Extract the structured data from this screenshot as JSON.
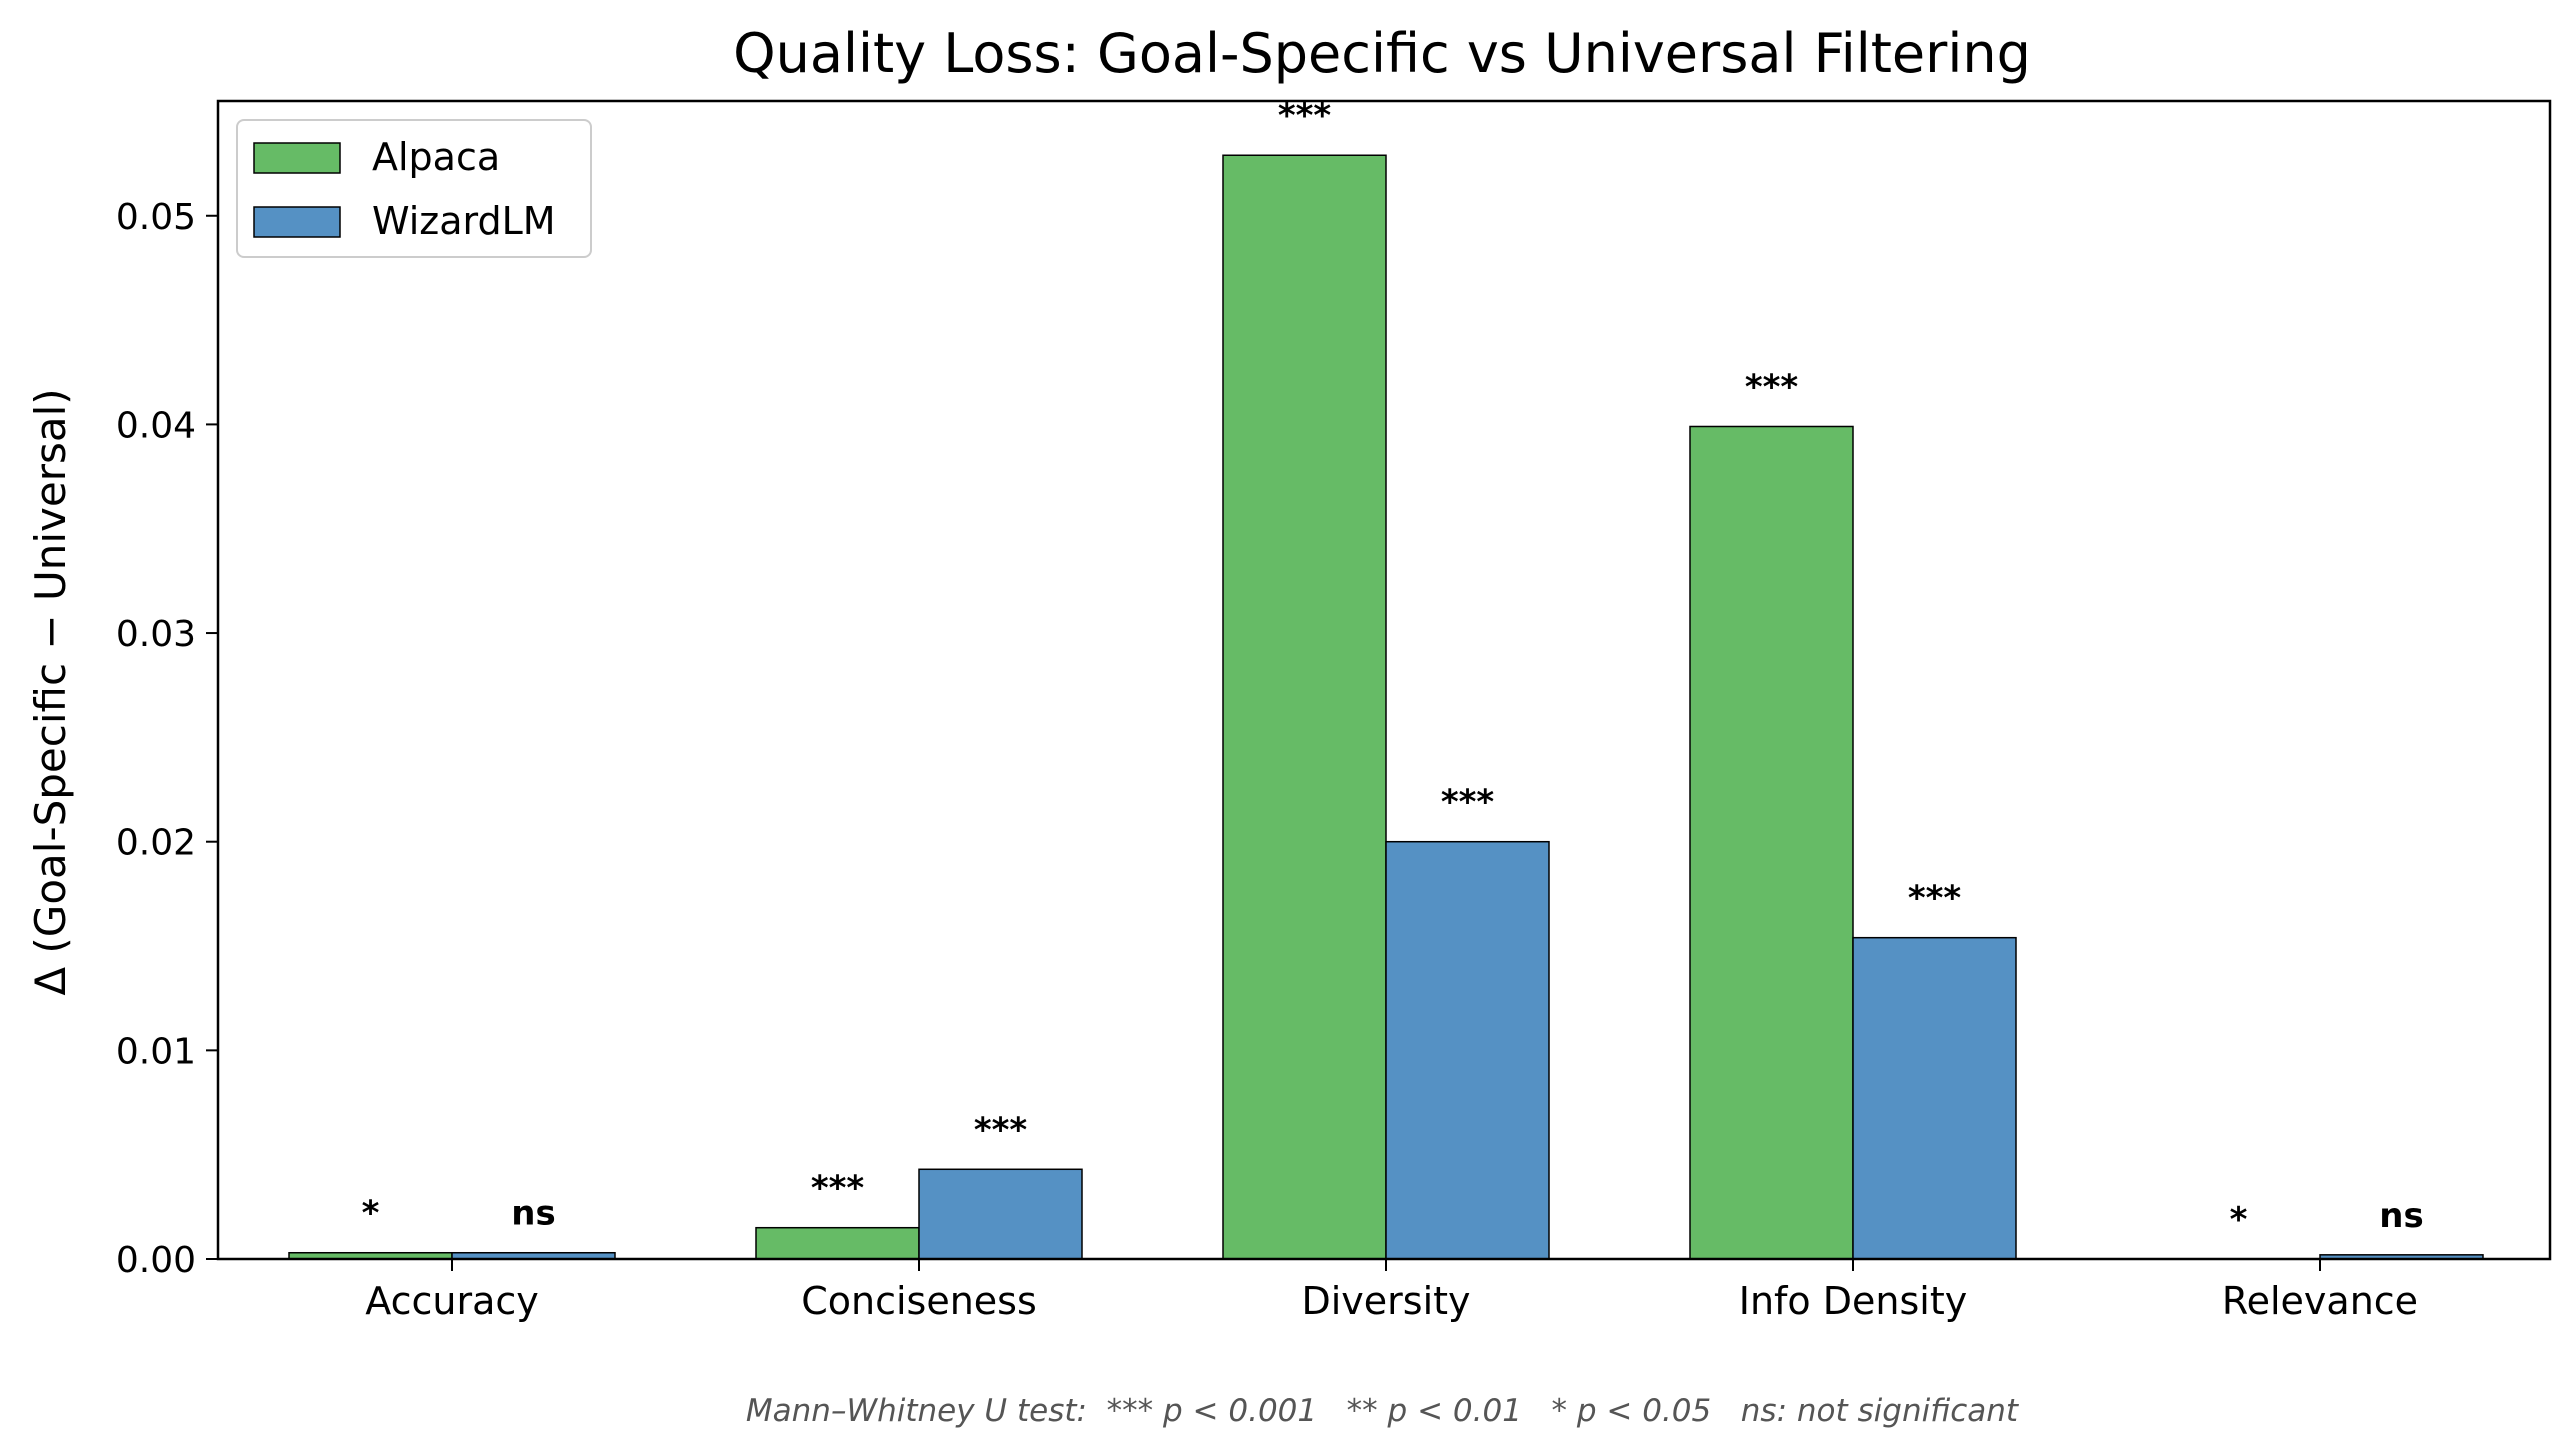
{
  "chart_data": {
    "type": "bar",
    "title": "Quality Loss: Goal-Specific vs Universal Filtering",
    "xlabel": "",
    "ylabel": "Δ (Goal-Specific − Universal)",
    "categories": [
      "Accuracy",
      "Conciseness",
      "Diversity",
      "Info Density",
      "Relevance"
    ],
    "series": [
      {
        "name": "Alpaca",
        "color": "#66bb66",
        "values": [
          0.0003,
          0.0015,
          0.0529,
          0.0399,
          0.0
        ],
        "significance": [
          "*",
          "***",
          "***",
          "***",
          "*"
        ]
      },
      {
        "name": "WizardLM",
        "color": "#5591c4",
        "values": [
          0.0003,
          0.0043,
          0.02,
          0.0154,
          0.0002
        ],
        "significance": [
          "ns",
          "***",
          "***",
          "***",
          "ns"
        ]
      }
    ],
    "ylim": [
      0,
      0.0555
    ],
    "yticks": [
      0.0,
      0.01,
      0.02,
      0.03,
      0.04,
      0.05
    ],
    "ytick_labels": [
      "0.00",
      "0.01",
      "0.02",
      "0.03",
      "0.04",
      "0.05"
    ],
    "grid": false,
    "legend_position": "top-left",
    "footnote": "Mann–Whitney U test:  *** p < 0.001   ** p < 0.01   * p < 0.05   ns: not significant"
  }
}
